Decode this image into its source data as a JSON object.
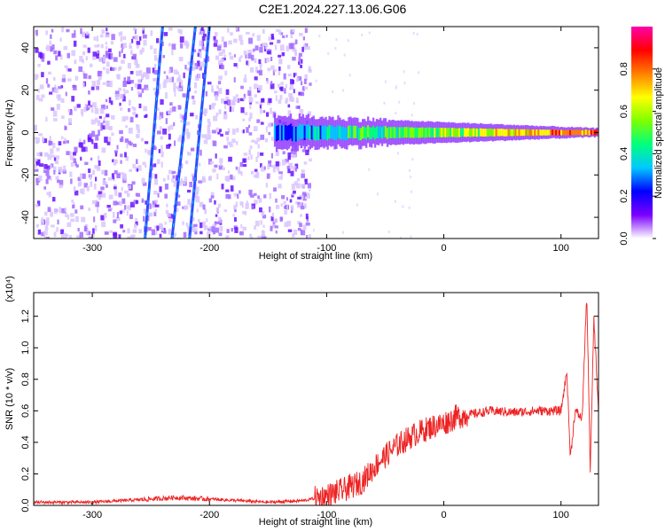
{
  "title": "C2E1.2024.227.13.06.G06",
  "chart_data": [
    {
      "type": "heatmap",
      "xlabel": "Height of straight line (km)",
      "ylabel": "Frequency (Hz)",
      "xlim": [
        -350,
        132
      ],
      "ylim": [
        -50,
        50
      ],
      "xticks": [
        -300,
        -200,
        -100,
        0,
        100
      ],
      "yticks": [
        -40,
        -20,
        0,
        20,
        40
      ],
      "colorbar": {
        "label": "Normalized spectral amplitude",
        "range": [
          0.0,
          1.0
        ],
        "ticks": [
          "0.0",
          "0.2",
          "0.4",
          "0.6",
          "0.8"
        ],
        "colors": [
          "#ffffff",
          "#7b00ff",
          "#0000ff",
          "#00c8ff",
          "#00ff7f",
          "#7fff00",
          "#ffff00",
          "#ff8000",
          "#ff0000",
          "#ff00aa"
        ]
      },
      "features": {
        "noise_region_x": [
          -350,
          -115
        ],
        "tracks": [
          {
            "x": [
              -255,
              -240
            ],
            "y": [
              -50,
              50
            ]
          },
          {
            "x": [
              -232,
              -212
            ],
            "y": [
              -50,
              50
            ]
          },
          {
            "x": [
              -217,
              -200
            ],
            "y": [
              -50,
              50
            ]
          }
        ],
        "signal_band": {
          "x": [
            -145,
            132
          ],
          "center_hz": 0,
          "halfwidth_hz": [
            8,
            2
          ]
        }
      }
    },
    {
      "type": "line",
      "xlabel": "Height of straight line (km)",
      "ylabel": "SNR (10 * v/v)",
      "y_multiplier_label": "(x10⁴)",
      "xlim": [
        -350,
        132
      ],
      "ylim": [
        0,
        1.35
      ],
      "xticks": [
        -300,
        -200,
        -100,
        0,
        100
      ],
      "yticks": [
        "0.0",
        "0.2",
        "0.4",
        "0.6",
        "0.8",
        "1.0",
        "1.2"
      ],
      "color": "#ee2222",
      "series": [
        {
          "x": [
            -350,
            -300,
            -250,
            -230,
            -200,
            -150,
            -120,
            -100,
            -85,
            -70,
            -55,
            -40,
            -25,
            -10,
            0,
            10,
            25,
            40,
            60,
            80,
            100,
            105,
            108,
            112,
            118,
            122,
            125,
            128,
            132
          ],
          "y": [
            0.02,
            0.02,
            0.04,
            0.05,
            0.04,
            0.02,
            0.03,
            0.06,
            0.1,
            0.15,
            0.28,
            0.38,
            0.45,
            0.5,
            0.52,
            0.56,
            0.58,
            0.6,
            0.59,
            0.6,
            0.6,
            0.85,
            0.3,
            0.6,
            0.55,
            1.35,
            0.2,
            1.2,
            0.6
          ]
        }
      ]
    }
  ]
}
